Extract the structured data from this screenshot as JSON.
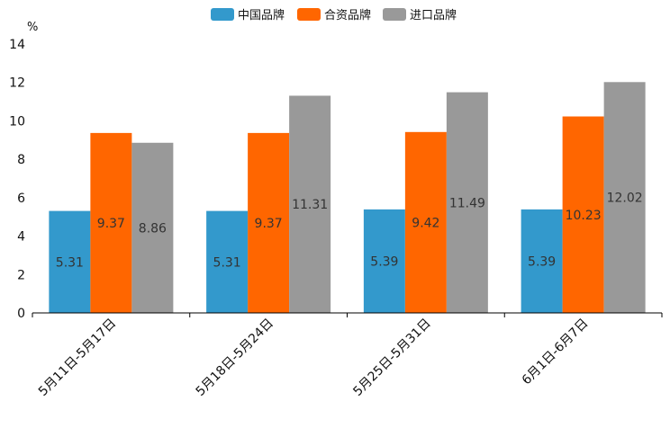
{
  "chart_data": {
    "type": "bar",
    "ylabel": "%",
    "ylim": [
      0,
      14
    ],
    "yticks": [
      0,
      2,
      4,
      6,
      8,
      10,
      12,
      14
    ],
    "categories": [
      "5月11日-5月17日",
      "5月18日-5月24日",
      "5月25日-5月31日",
      "6月1日-6月7日"
    ],
    "series": [
      {
        "name": "中国品牌",
        "color": "#3399cc",
        "values": [
          5.31,
          5.31,
          5.39,
          5.39
        ]
      },
      {
        "name": "合资品牌",
        "color": "#ff6600",
        "values": [
          9.37,
          9.37,
          9.42,
          10.23
        ]
      },
      {
        "name": "进口品牌",
        "color": "#999999",
        "values": [
          8.86,
          11.31,
          11.49,
          12.02
        ]
      }
    ],
    "legend_position": "top-center",
    "grid": false
  }
}
